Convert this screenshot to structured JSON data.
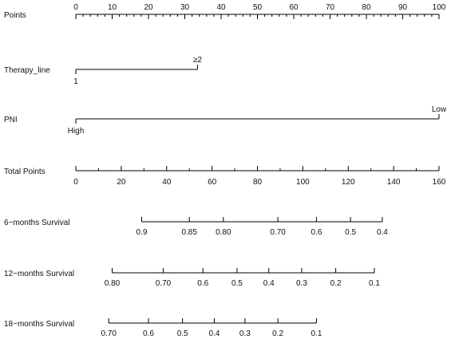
{
  "chart_data": {
    "type": "nomogram",
    "title": "",
    "rows": [
      {
        "label": "Points",
        "kind": "linear",
        "min": 0,
        "max": 100,
        "major_step": 10,
        "minor_step": 2,
        "labels": [
          "0",
          "10",
          "20",
          "30",
          "40",
          "50",
          "60",
          "70",
          "80",
          "90",
          "100"
        ],
        "label_side": "above"
      },
      {
        "label": "Therapy_line",
        "kind": "categorical",
        "points_min": 0,
        "points_max": 33.5,
        "levels": [
          {
            "text": "1",
            "points": 0,
            "side": "below"
          },
          {
            "text": "≥2",
            "points": 33.5,
            "side": "above"
          }
        ]
      },
      {
        "label": "PNI",
        "kind": "categorical",
        "points_min": 0,
        "points_max": 100,
        "levels": [
          {
            "text": "High",
            "points": 0,
            "side": "below"
          },
          {
            "text": "Low",
            "points": 100,
            "side": "above"
          }
        ]
      },
      {
        "label": "Total Points",
        "kind": "linear",
        "min": 0,
        "max": 160,
        "major_step": 20,
        "minor_step": 10,
        "labels": [
          "0",
          "20",
          "40",
          "60",
          "80",
          "100",
          "120",
          "140",
          "160"
        ],
        "label_side": "below"
      },
      {
        "label": "6−months Survival",
        "kind": "nonlinear",
        "ticks": [
          {
            "text": "0.9",
            "total_points": 29
          },
          {
            "text": "0.85",
            "total_points": 50
          },
          {
            "text": "0.80",
            "total_points": 65
          },
          {
            "text": "0.70",
            "total_points": 89
          },
          {
            "text": "0.6",
            "total_points": 106
          },
          {
            "text": "0.5",
            "total_points": 121
          },
          {
            "text": "0.4",
            "total_points": 135
          }
        ]
      },
      {
        "label": "12−months Survival",
        "kind": "nonlinear",
        "ticks": [
          {
            "text": "0.80",
            "total_points": 16
          },
          {
            "text": "0.70",
            "total_points": 38.5
          },
          {
            "text": "0.6",
            "total_points": 56
          },
          {
            "text": "0.5",
            "total_points": 71
          },
          {
            "text": "0.4",
            "total_points": 85
          },
          {
            "text": "0.3",
            "total_points": 99.5
          },
          {
            "text": "0.2",
            "total_points": 114.5
          },
          {
            "text": "0.1",
            "total_points": 131.5
          }
        ]
      },
      {
        "label": "18−months Survival",
        "kind": "nonlinear",
        "ticks": [
          {
            "text": "0.70",
            "total_points": 14.5
          },
          {
            "text": "0.6",
            "total_points": 32
          },
          {
            "text": "0.5",
            "total_points": 47
          },
          {
            "text": "0.4",
            "total_points": 61
          },
          {
            "text": "0.3",
            "total_points": 74.5
          },
          {
            "text": "0.2",
            "total_points": 89
          },
          {
            "text": "0.1",
            "total_points": 106
          }
        ]
      }
    ]
  }
}
